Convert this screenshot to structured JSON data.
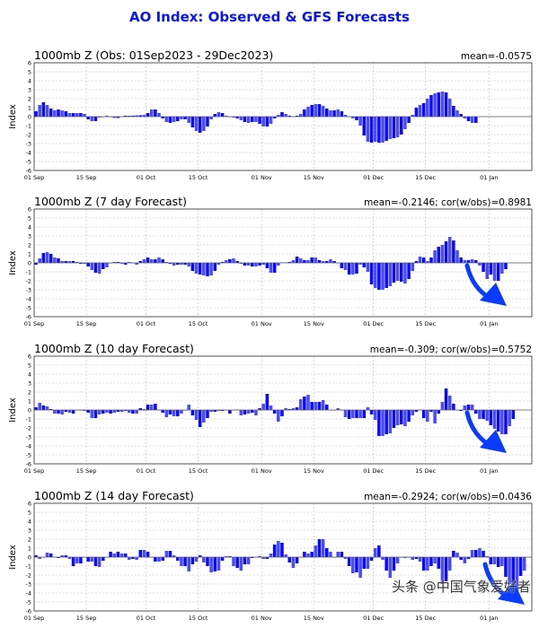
{
  "title": "AO Index: Observed & GFS Forecasts",
  "watermark": "头条 @中国气象爱好者",
  "colors": {
    "bar": "#0a0aff",
    "title": "#0a14f0",
    "arrow": "#0a3cff"
  },
  "chart_data": [
    {
      "type": "bar",
      "title": "1000mb Z (Obs: 01Sep2023 - 29Dec2023)",
      "stats": "mean=-0.0575",
      "ylabel": "Index",
      "ylim": [
        -6,
        6
      ],
      "yticks": [
        -6,
        -5,
        -4,
        -3,
        -2,
        -1,
        0,
        1,
        2,
        3,
        4,
        5,
        6
      ],
      "x_start": "01 Sep 2023",
      "xtick_labels": [
        "01 Sep",
        "15 Sep",
        "01 Oct",
        "15 Oct",
        "01 Nov",
        "15 Nov",
        "01 Dec",
        "15 Dec",
        "01 Jan"
      ],
      "xtick_days": [
        0,
        14,
        30,
        44,
        61,
        75,
        91,
        105,
        122
      ],
      "arrow": false,
      "values": [
        0.6,
        1.3,
        1.6,
        1.3,
        0.9,
        0.7,
        0.8,
        0.7,
        0.6,
        0.4,
        0.4,
        0.4,
        0.4,
        0.3,
        -0.3,
        -0.5,
        -0.5,
        -0.1,
        0,
        0.1,
        -0.05,
        -0.15,
        -0.15,
        0,
        0.1,
        0.1,
        0.1,
        0.15,
        0.15,
        0.2,
        0.4,
        0.8,
        0.8,
        0.4,
        -0.2,
        -0.6,
        -0.7,
        -0.6,
        -0.5,
        -0.3,
        -0.3,
        -0.7,
        -1.2,
        -1.6,
        -1.8,
        -1.6,
        -1.1,
        -0.3,
        0.3,
        0.5,
        0.4,
        0.1,
        0,
        -0.1,
        -0.2,
        -0.4,
        -0.6,
        -0.7,
        -0.6,
        -0.6,
        -0.8,
        -1.1,
        -1.1,
        -0.8,
        -0.2,
        0.2,
        0.5,
        0.3,
        0.1,
        0,
        0.1,
        0.3,
        0.8,
        1.1,
        1.3,
        1.4,
        1.4,
        1.2,
        0.9,
        0.7,
        0.7,
        0.8,
        0.6,
        0.2,
        0,
        -0.2,
        -0.4,
        -1.0,
        -2.1,
        -2.8,
        -2.9,
        -2.8,
        -2.9,
        -2.9,
        -2.7,
        -2.5,
        -2.4,
        -2.3,
        -2.0,
        -1.4,
        -0.7,
        0.2,
        1.0,
        1.3,
        1.5,
        2.0,
        2.4,
        2.6,
        2.7,
        2.8,
        2.7,
        2.0,
        1.2,
        0.7,
        0.3,
        -0.2,
        -0.5,
        -0.7,
        -0.7
      ]
    },
    {
      "type": "bar",
      "title": "1000mb Z (7 day Forecast)",
      "stats": "mean=-0.2146; cor(w/obs)=0.8981",
      "ylabel": "Index",
      "ylim": [
        -6,
        6
      ],
      "yticks": [
        -6,
        -5,
        -4,
        -3,
        -2,
        -1,
        0,
        1,
        2,
        3,
        4,
        5,
        6
      ],
      "x_start": "01 Sep 2023",
      "xtick_labels": [
        "01 Sep",
        "15 Sep",
        "01 Oct",
        "15 Oct",
        "01 Nov",
        "15 Nov",
        "01 Dec",
        "15 Dec",
        "01 Jan"
      ],
      "xtick_days": [
        0,
        14,
        30,
        44,
        61,
        75,
        91,
        105,
        122
      ],
      "arrow": true,
      "values": [
        -0.2,
        0.5,
        1.1,
        1.2,
        1.0,
        0.6,
        0.5,
        0.2,
        0.2,
        0.2,
        0.2,
        0.1,
        -0.1,
        -0.1,
        -0.4,
        -0.8,
        -1.1,
        -1.2,
        -0.7,
        -0.5,
        0,
        0.1,
        0.1,
        -0.1,
        -0.2,
        0.1,
        0,
        -0.2,
        0.2,
        0.4,
        0.6,
        0.4,
        0.4,
        0.6,
        0.4,
        0.1,
        -0.1,
        -0.3,
        -0.2,
        -0.2,
        -0.2,
        -0.4,
        -0.9,
        -1.2,
        -1.3,
        -1.4,
        -1.5,
        -1.4,
        -0.9,
        -0.2,
        0.1,
        0.3,
        0.4,
        0.5,
        0.2,
        -0.1,
        -0.3,
        -0.3,
        -0.4,
        -0.4,
        -0.3,
        -0.2,
        -0.6,
        -1.1,
        -1.1,
        -0.3,
        0.05,
        0.05,
        0.1,
        0.3,
        0.7,
        0.5,
        0.3,
        0.3,
        0.6,
        0.6,
        0.3,
        0.2,
        0.2,
        0.4,
        0.2,
        0,
        -0.6,
        -0.8,
        -1.3,
        -1.3,
        -1.2,
        -0.2,
        -0.5,
        -1.0,
        -2.4,
        -2.8,
        -3.0,
        -3.0,
        -2.8,
        -2.6,
        -2.2,
        -2.0,
        -2.1,
        -2.3,
        -1.8,
        -0.9,
        0.2,
        0.7,
        0.6,
        0.2,
        0.6,
        1.4,
        1.8,
        2.0,
        2.4,
        2.9,
        2.5,
        1.4,
        0.6,
        0.3,
        0.3,
        0.4,
        0.3,
        -0.3,
        -1.0,
        -1.8,
        -1.3,
        -2.0,
        -2.0,
        -1.2,
        -0.7
      ]
    },
    {
      "type": "bar",
      "title": "1000mb Z (10 day Forecast)",
      "stats": "mean=-0.309; cor(w/obs)=0.5752",
      "ylabel": "Index",
      "ylim": [
        -6,
        6
      ],
      "yticks": [
        -6,
        -5,
        -4,
        -3,
        -2,
        -1,
        0,
        1,
        2,
        3,
        4,
        5,
        6
      ],
      "x_start": "01 Sep 2023",
      "xtick_labels": [
        "01 Sep",
        "15 Sep",
        "01 Oct",
        "15 Oct",
        "01 Nov",
        "15 Nov",
        "01 Dec",
        "15 Dec",
        "01 Jan"
      ],
      "xtick_days": [
        0,
        14,
        30,
        44,
        61,
        75,
        91,
        105,
        122
      ],
      "arrow": true,
      "values": [
        0.3,
        0.8,
        0.5,
        0.4,
        0.1,
        -0.4,
        -0.4,
        -0.5,
        -0.2,
        -0.3,
        -0.4,
        0,
        0,
        -0.1,
        -0.3,
        -0.9,
        -0.9,
        -0.5,
        -0.4,
        -0.3,
        -0.4,
        -0.3,
        -0.2,
        -0.2,
        -0.1,
        -0.3,
        -0.4,
        -0.4,
        0.2,
        0.1,
        0.6,
        0.6,
        0.7,
        0,
        -0.3,
        -0.8,
        -0.5,
        -0.7,
        -0.7,
        -0.4,
        0,
        0.6,
        -0.6,
        -1.1,
        -1.9,
        -1.4,
        -0.9,
        -0.2,
        -0.2,
        -0.1,
        -0.1,
        -0.05,
        -0.4,
        0,
        0.05,
        -0.6,
        -0.5,
        -0.4,
        -0.3,
        -0.6,
        0.2,
        0.7,
        1.8,
        0.5,
        -0.4,
        -1.3,
        -0.7,
        0.2,
        0.1,
        0.2,
        0.3,
        1.2,
        1.5,
        1.7,
        0.9,
        0.9,
        0.9,
        1.1,
        0.6,
        0,
        0,
        0.2,
        0,
        -0.8,
        -1.0,
        -0.9,
        -0.9,
        -0.9,
        -0.9,
        0.3,
        -0.5,
        -1.1,
        -2.9,
        -2.9,
        -2.7,
        -2.6,
        -2.0,
        -1.7,
        -1.6,
        -1.8,
        -1.3,
        -0.6,
        -0.2,
        0,
        -0.9,
        -1.3,
        -0.2,
        -1.5,
        -0.4,
        0.9,
        2.4,
        1.6,
        0.7,
        0,
        -0.1,
        0.5,
        0.6,
        0.6,
        -0.4,
        -1.0,
        -1.0,
        -1.2,
        -1.7,
        -2.1,
        -2.4,
        -2.7,
        -2.7,
        -1.8,
        -1.0
      ]
    },
    {
      "type": "bar",
      "title": "1000mb Z (14 day Forecast)",
      "stats": "mean=-0.2924; cor(w/obs)=0.0436",
      "ylabel": "Index",
      "ylim": [
        -6,
        6
      ],
      "yticks": [
        -6,
        -5,
        -4,
        -3,
        -2,
        -1,
        0,
        1,
        2,
        3,
        4,
        5,
        6
      ],
      "x_start": "01 Sep 2023",
      "xtick_labels": [
        "01 Sep",
        "15 Sep",
        "01 Oct",
        "15 Oct",
        "01 Nov",
        "15 Nov",
        "01 Dec",
        "15 Dec",
        "01 Jan"
      ],
      "xtick_days": [
        0,
        14,
        30,
        44,
        61,
        75,
        91,
        105,
        122
      ],
      "arrow": true,
      "values": [
        0.2,
        -0.2,
        0,
        0.5,
        0.4,
        0,
        -0.1,
        0.2,
        0.2,
        -0.2,
        -1.0,
        -0.7,
        -0.7,
        0,
        -0.5,
        -0.5,
        -1.0,
        -1.1,
        -0.4,
        0,
        0.6,
        0.4,
        0.6,
        0.4,
        0.4,
        -0.3,
        -0.2,
        -0.3,
        0.8,
        0.8,
        0.6,
        0,
        -0.5,
        -0.5,
        -0.4,
        0.7,
        0.7,
        0.2,
        -0.4,
        -1.0,
        -1.0,
        -1.6,
        -0.8,
        -0.5,
        0.2,
        -0.6,
        -1.0,
        -1.7,
        -1.6,
        -1.5,
        -0.4,
        0.1,
        0.1,
        -1.0,
        -1.2,
        -1.5,
        -0.8,
        -0.8,
        -0.1,
        0,
        0.1,
        -0.2,
        -0.2,
        0.4,
        1.4,
        1.8,
        1.6,
        0.3,
        -0.6,
        -1.2,
        -0.7,
        0,
        0.6,
        0.4,
        0.6,
        1.3,
        2.0,
        2.0,
        1.0,
        0.6,
        0,
        0.6,
        0.6,
        -0.2,
        -1.0,
        -1.8,
        -1.7,
        -2.3,
        -1.3,
        -1.3,
        -0.4,
        1.0,
        1.3,
        -0.3,
        -1.5,
        -2.3,
        -1.5,
        -0.7,
        0,
        -0.1,
        0,
        -0.3,
        -0.2,
        -0.5,
        -1.5,
        -1.5,
        -1.0,
        -0.7,
        -1.3,
        -3.0,
        -2.7,
        -1.5,
        0.7,
        0.5,
        -0.3,
        -0.7,
        -0.2,
        0.8,
        0.8,
        1.0,
        0.7,
        0.1,
        -0.8,
        -0.8,
        -1.1,
        -1.0,
        -2.2,
        -3.0,
        -3.8,
        -3.8,
        -2.1,
        -1.5
      ]
    }
  ]
}
